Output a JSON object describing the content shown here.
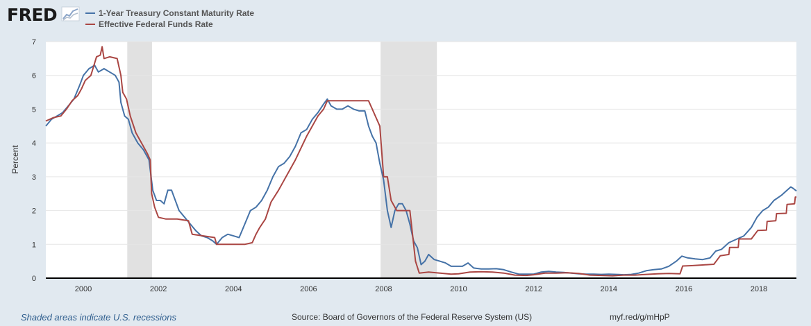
{
  "header": {
    "logo_text": "FRED",
    "logo_icon": "chart-line-icon"
  },
  "footer": {
    "recession_note": "Shaded areas indicate U.S. recessions",
    "source": "Source: Board of Governors of the Federal Reserve System (US)",
    "link": "myf.red/g/mHpP"
  },
  "colors": {
    "series1": "#4572a7",
    "series2": "#aa4643",
    "recession": "#e1e1e1",
    "grid": "#e6e6e6",
    "background": "#e1e9f0"
  },
  "chart_data": {
    "type": "line",
    "title": "",
    "xlabel": "",
    "ylabel": "Percent",
    "xlim": [
      1999.0,
      2019.0
    ],
    "ylim": [
      0,
      7
    ],
    "y_ticks": [
      0,
      1,
      2,
      3,
      4,
      5,
      6,
      7
    ],
    "x_ticks": [
      2000,
      2002,
      2004,
      2006,
      2008,
      2010,
      2012,
      2014,
      2016,
      2018
    ],
    "grid": true,
    "legend_position": "top-left",
    "recessions": [
      {
        "start": 2001.17,
        "end": 2001.83
      },
      {
        "start": 2007.92,
        "end": 2009.42
      }
    ],
    "series": [
      {
        "name": "1-Year Treasury Constant Maturity Rate",
        "color": "#4572a7",
        "points": [
          [
            1999.0,
            4.5
          ],
          [
            1999.15,
            4.7
          ],
          [
            1999.3,
            4.8
          ],
          [
            1999.45,
            4.9
          ],
          [
            1999.6,
            5.1
          ],
          [
            1999.75,
            5.3
          ],
          [
            1999.9,
            5.7
          ],
          [
            2000.0,
            6.0
          ],
          [
            2000.15,
            6.2
          ],
          [
            2000.3,
            6.3
          ],
          [
            2000.4,
            6.1
          ],
          [
            2000.55,
            6.2
          ],
          [
            2000.7,
            6.1
          ],
          [
            2000.85,
            6.0
          ],
          [
            2000.95,
            5.8
          ],
          [
            2001.0,
            5.2
          ],
          [
            2001.1,
            4.8
          ],
          [
            2001.2,
            4.7
          ],
          [
            2001.3,
            4.3
          ],
          [
            2001.45,
            4.0
          ],
          [
            2001.6,
            3.8
          ],
          [
            2001.75,
            3.5
          ],
          [
            2001.85,
            2.6
          ],
          [
            2001.95,
            2.3
          ],
          [
            2002.05,
            2.3
          ],
          [
            2002.15,
            2.2
          ],
          [
            2002.25,
            2.6
          ],
          [
            2002.35,
            2.6
          ],
          [
            2002.45,
            2.3
          ],
          [
            2002.55,
            2.0
          ],
          [
            2002.7,
            1.8
          ],
          [
            2002.85,
            1.6
          ],
          [
            2003.0,
            1.4
          ],
          [
            2003.15,
            1.25
          ],
          [
            2003.3,
            1.2
          ],
          [
            2003.45,
            1.1
          ],
          [
            2003.55,
            1.0
          ],
          [
            2003.7,
            1.2
          ],
          [
            2003.85,
            1.3
          ],
          [
            2004.0,
            1.25
          ],
          [
            2004.15,
            1.2
          ],
          [
            2004.3,
            1.6
          ],
          [
            2004.45,
            2.0
          ],
          [
            2004.6,
            2.1
          ],
          [
            2004.75,
            2.3
          ],
          [
            2004.9,
            2.6
          ],
          [
            2005.05,
            3.0
          ],
          [
            2005.2,
            3.3
          ],
          [
            2005.35,
            3.4
          ],
          [
            2005.5,
            3.6
          ],
          [
            2005.65,
            3.9
          ],
          [
            2005.8,
            4.3
          ],
          [
            2005.95,
            4.4
          ],
          [
            2006.1,
            4.7
          ],
          [
            2006.25,
            4.9
          ],
          [
            2006.4,
            5.15
          ],
          [
            2006.5,
            5.3
          ],
          [
            2006.6,
            5.1
          ],
          [
            2006.75,
            5.0
          ],
          [
            2006.9,
            5.0
          ],
          [
            2007.05,
            5.1
          ],
          [
            2007.2,
            5.0
          ],
          [
            2007.35,
            4.95
          ],
          [
            2007.5,
            4.95
          ],
          [
            2007.6,
            4.5
          ],
          [
            2007.7,
            4.2
          ],
          [
            2007.8,
            4.0
          ],
          [
            2007.9,
            3.4
          ],
          [
            2008.0,
            2.9
          ],
          [
            2008.1,
            2.0
          ],
          [
            2008.2,
            1.5
          ],
          [
            2008.3,
            2.0
          ],
          [
            2008.4,
            2.2
          ],
          [
            2008.5,
            2.2
          ],
          [
            2008.6,
            2.0
          ],
          [
            2008.7,
            1.6
          ],
          [
            2008.8,
            1.1
          ],
          [
            2008.9,
            0.9
          ],
          [
            2009.0,
            0.4
          ],
          [
            2009.1,
            0.5
          ],
          [
            2009.2,
            0.7
          ],
          [
            2009.35,
            0.55
          ],
          [
            2009.5,
            0.5
          ],
          [
            2009.65,
            0.45
          ],
          [
            2009.8,
            0.35
          ],
          [
            2009.95,
            0.35
          ],
          [
            2010.1,
            0.35
          ],
          [
            2010.25,
            0.45
          ],
          [
            2010.4,
            0.3
          ],
          [
            2010.6,
            0.27
          ],
          [
            2010.8,
            0.27
          ],
          [
            2011.0,
            0.28
          ],
          [
            2011.2,
            0.25
          ],
          [
            2011.4,
            0.18
          ],
          [
            2011.6,
            0.12
          ],
          [
            2011.8,
            0.12
          ],
          [
            2012.0,
            0.12
          ],
          [
            2012.2,
            0.18
          ],
          [
            2012.4,
            0.2
          ],
          [
            2012.6,
            0.18
          ],
          [
            2012.8,
            0.17
          ],
          [
            2013.0,
            0.15
          ],
          [
            2013.2,
            0.13
          ],
          [
            2013.4,
            0.12
          ],
          [
            2013.6,
            0.12
          ],
          [
            2013.8,
            0.11
          ],
          [
            2014.0,
            0.12
          ],
          [
            2014.2,
            0.11
          ],
          [
            2014.4,
            0.1
          ],
          [
            2014.6,
            0.11
          ],
          [
            2014.8,
            0.15
          ],
          [
            2015.0,
            0.22
          ],
          [
            2015.2,
            0.25
          ],
          [
            2015.4,
            0.27
          ],
          [
            2015.6,
            0.35
          ],
          [
            2015.8,
            0.5
          ],
          [
            2015.95,
            0.65
          ],
          [
            2016.1,
            0.6
          ],
          [
            2016.3,
            0.57
          ],
          [
            2016.5,
            0.55
          ],
          [
            2016.7,
            0.6
          ],
          [
            2016.85,
            0.8
          ],
          [
            2017.0,
            0.85
          ],
          [
            2017.2,
            1.05
          ],
          [
            2017.4,
            1.15
          ],
          [
            2017.6,
            1.25
          ],
          [
            2017.8,
            1.5
          ],
          [
            2017.95,
            1.8
          ],
          [
            2018.1,
            2.0
          ],
          [
            2018.25,
            2.1
          ],
          [
            2018.4,
            2.3
          ],
          [
            2018.6,
            2.45
          ],
          [
            2018.75,
            2.6
          ],
          [
            2018.85,
            2.7
          ],
          [
            2018.92,
            2.65
          ],
          [
            2019.0,
            2.58
          ]
        ]
      },
      {
        "name": "Effective Federal Funds Rate",
        "color": "#aa4643",
        "points": [
          [
            1999.0,
            4.65
          ],
          [
            1999.2,
            4.75
          ],
          [
            1999.4,
            4.8
          ],
          [
            1999.55,
            5.0
          ],
          [
            1999.7,
            5.25
          ],
          [
            1999.85,
            5.4
          ],
          [
            1999.95,
            5.6
          ],
          [
            2000.05,
            5.85
          ],
          [
            2000.2,
            6.0
          ],
          [
            2000.35,
            6.55
          ],
          [
            2000.45,
            6.6
          ],
          [
            2000.5,
            6.85
          ],
          [
            2000.55,
            6.5
          ],
          [
            2000.7,
            6.55
          ],
          [
            2000.9,
            6.5
          ],
          [
            2001.0,
            6.0
          ],
          [
            2001.05,
            5.5
          ],
          [
            2001.15,
            5.3
          ],
          [
            2001.25,
            4.8
          ],
          [
            2001.4,
            4.3
          ],
          [
            2001.55,
            4.0
          ],
          [
            2001.7,
            3.7
          ],
          [
            2001.78,
            3.5
          ],
          [
            2001.82,
            2.5
          ],
          [
            2001.9,
            2.1
          ],
          [
            2002.0,
            1.8
          ],
          [
            2002.2,
            1.75
          ],
          [
            2002.5,
            1.75
          ],
          [
            2002.8,
            1.7
          ],
          [
            2002.9,
            1.3
          ],
          [
            2003.2,
            1.25
          ],
          [
            2003.5,
            1.2
          ],
          [
            2003.55,
            1.0
          ],
          [
            2003.8,
            1.0
          ],
          [
            2004.0,
            1.0
          ],
          [
            2004.3,
            1.0
          ],
          [
            2004.5,
            1.05
          ],
          [
            2004.6,
            1.3
          ],
          [
            2004.7,
            1.5
          ],
          [
            2004.85,
            1.75
          ],
          [
            2005.0,
            2.25
          ],
          [
            2005.2,
            2.6
          ],
          [
            2005.35,
            2.9
          ],
          [
            2005.5,
            3.2
          ],
          [
            2005.65,
            3.5
          ],
          [
            2005.8,
            3.85
          ],
          [
            2005.95,
            4.2
          ],
          [
            2006.1,
            4.5
          ],
          [
            2006.25,
            4.8
          ],
          [
            2006.4,
            5.0
          ],
          [
            2006.5,
            5.25
          ],
          [
            2006.7,
            5.25
          ],
          [
            2006.9,
            5.25
          ],
          [
            2007.1,
            5.25
          ],
          [
            2007.4,
            5.25
          ],
          [
            2007.6,
            5.25
          ],
          [
            2007.7,
            5.0
          ],
          [
            2007.8,
            4.75
          ],
          [
            2007.9,
            4.5
          ],
          [
            2008.0,
            3.0
          ],
          [
            2008.1,
            3.0
          ],
          [
            2008.2,
            2.3
          ],
          [
            2008.35,
            2.0
          ],
          [
            2008.55,
            2.0
          ],
          [
            2008.7,
            2.0
          ],
          [
            2008.75,
            1.5
          ],
          [
            2008.85,
            0.5
          ],
          [
            2008.95,
            0.15
          ],
          [
            2009.2,
            0.18
          ],
          [
            2009.5,
            0.15
          ],
          [
            2009.8,
            0.12
          ],
          [
            2010.0,
            0.13
          ],
          [
            2010.3,
            0.18
          ],
          [
            2010.6,
            0.19
          ],
          [
            2010.9,
            0.18
          ],
          [
            2011.2,
            0.15
          ],
          [
            2011.5,
            0.09
          ],
          [
            2011.8,
            0.08
          ],
          [
            2012.0,
            0.1
          ],
          [
            2012.3,
            0.15
          ],
          [
            2012.6,
            0.15
          ],
          [
            2012.9,
            0.16
          ],
          [
            2013.2,
            0.14
          ],
          [
            2013.5,
            0.09
          ],
          [
            2013.8,
            0.08
          ],
          [
            2014.1,
            0.07
          ],
          [
            2014.4,
            0.09
          ],
          [
            2014.7,
            0.09
          ],
          [
            2015.0,
            0.11
          ],
          [
            2015.3,
            0.13
          ],
          [
            2015.6,
            0.14
          ],
          [
            2015.9,
            0.13
          ],
          [
            2015.97,
            0.36
          ],
          [
            2016.2,
            0.37
          ],
          [
            2016.5,
            0.39
          ],
          [
            2016.8,
            0.41
          ],
          [
            2016.97,
            0.66
          ],
          [
            2017.2,
            0.7
          ],
          [
            2017.22,
            0.91
          ],
          [
            2017.45,
            0.91
          ],
          [
            2017.47,
            1.16
          ],
          [
            2017.8,
            1.16
          ],
          [
            2017.97,
            1.41
          ],
          [
            2018.2,
            1.42
          ],
          [
            2018.22,
            1.68
          ],
          [
            2018.45,
            1.7
          ],
          [
            2018.47,
            1.91
          ],
          [
            2018.73,
            1.92
          ],
          [
            2018.75,
            2.18
          ],
          [
            2018.95,
            2.2
          ],
          [
            2018.97,
            2.4
          ],
          [
            2019.0,
            2.4
          ]
        ]
      }
    ]
  }
}
